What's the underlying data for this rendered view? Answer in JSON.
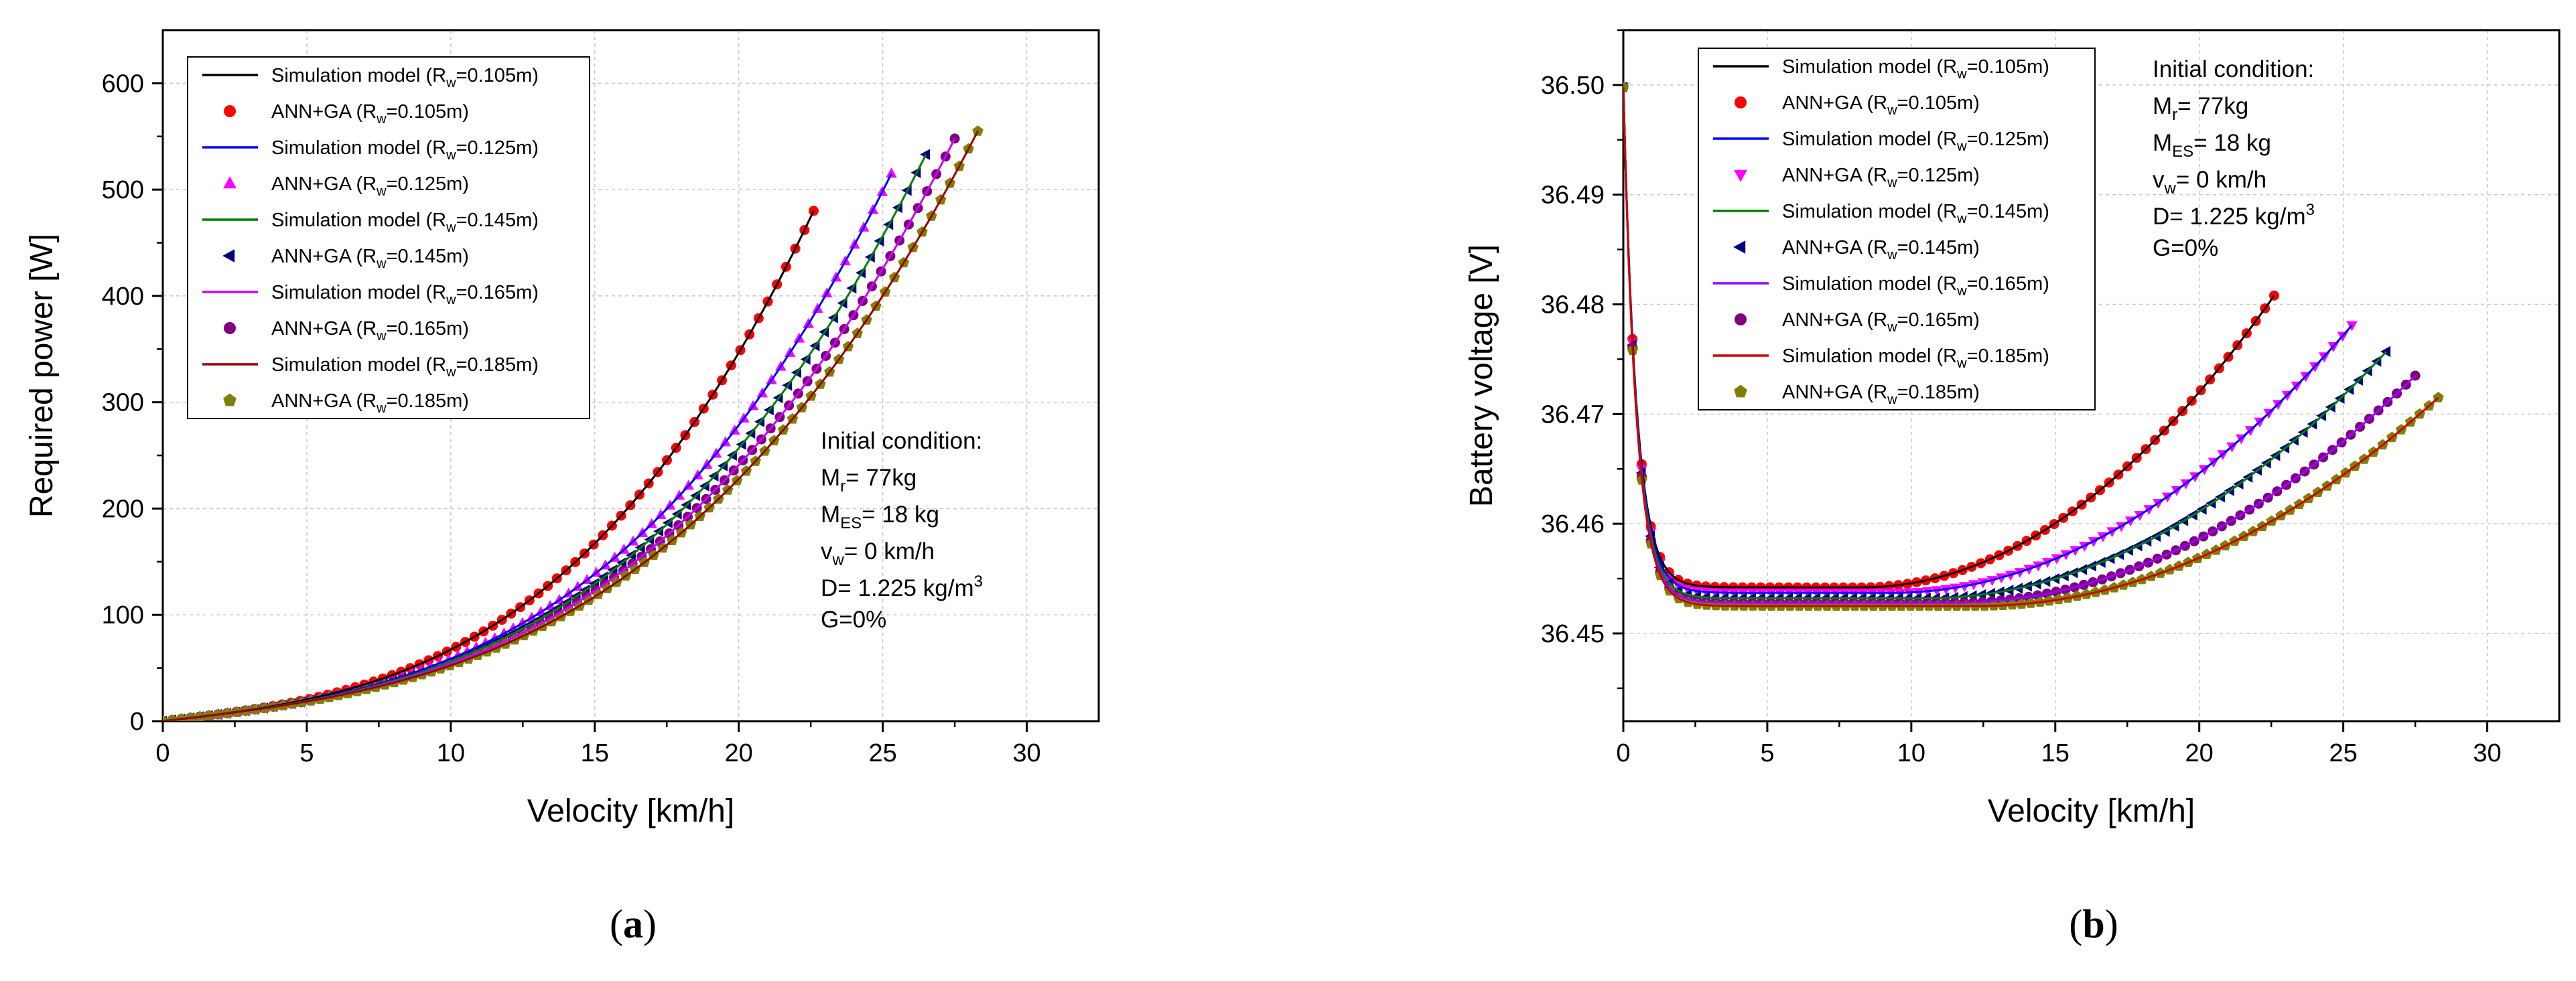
{
  "figure": {
    "caption_a_open": "(",
    "caption_a_letter": "a",
    "caption_a_close": ")",
    "caption_b_open": "(",
    "caption_b_letter": "b",
    "caption_b_close": ")"
  },
  "chart_data": [
    {
      "id": "a",
      "type": "line",
      "title": "",
      "xlabel": "Velocity [km/h]",
      "ylabel": "Required power [W]",
      "xlim": [
        0,
        32.5
      ],
      "ylim": [
        0,
        650
      ],
      "xticks": [
        0,
        5,
        10,
        15,
        20,
        25,
        30
      ],
      "yticks": [
        0,
        100,
        200,
        300,
        400,
        500,
        600
      ],
      "grid": true,
      "legend_position": "top-left",
      "curve_model": "power",
      "series": [
        {
          "name": "Simulation model (Rw=0.105m)",
          "label_main": "Simulation model (R",
          "label_sub": "w",
          "label_end": "=0.105m)",
          "kind": "line",
          "color": "#000000",
          "vmax": 22.6,
          "p_end": 480
        },
        {
          "name": "ANN+GA (Rw=0.105m)",
          "label_main": "ANN+GA (R",
          "label_sub": "w",
          "label_end": "=0.105m)",
          "kind": "marker",
          "marker": "circle",
          "color": "#ff0000",
          "vmax": 22.6,
          "p_end": 480
        },
        {
          "name": "Simulation model (Rw=0.125m)",
          "label_main": "Simulation model (R",
          "label_sub": "w",
          "label_end": "=0.125m)",
          "kind": "line",
          "color": "#0000ff",
          "vmax": 25.3,
          "p_end": 515
        },
        {
          "name": "ANN+GA (Rw=0.125m)",
          "label_main": "ANN+GA (R",
          "label_sub": "w",
          "label_end": "=0.125m)",
          "kind": "marker",
          "marker": "triangle-up",
          "color": "#ff00ff",
          "vmax": 25.3,
          "p_end": 515
        },
        {
          "name": "Simulation model (Rw=0.145m)",
          "label_main": "Simulation model (R",
          "label_sub": "w",
          "label_end": "=0.145m)",
          "kind": "line",
          "color": "#008000",
          "vmax": 26.5,
          "p_end": 533
        },
        {
          "name": "ANN+GA (Rw=0.145m)",
          "label_main": "ANN+GA (R",
          "label_sub": "w",
          "label_end": "=0.145m)",
          "kind": "marker",
          "marker": "triangle-left",
          "color": "#000080",
          "vmax": 26.5,
          "p_end": 533
        },
        {
          "name": "Simulation model (Rw=0.165m)",
          "label_main": "Simulation model (R",
          "label_sub": "w",
          "label_end": "=0.165m)",
          "kind": "line",
          "color": "#cc00ff",
          "vmax": 27.5,
          "p_end": 548
        },
        {
          "name": "ANN+GA (Rw=0.165m)",
          "label_main": "ANN+GA (R",
          "label_sub": "w",
          "label_end": "=0.165m)",
          "kind": "marker",
          "marker": "circle",
          "color": "#800080",
          "vmax": 27.5,
          "p_end": 548
        },
        {
          "name": "Simulation model (Rw=0.185m)",
          "label_main": "Simulation model (R",
          "label_sub": "w",
          "label_end": "=0.185m)",
          "kind": "line",
          "color": "#990000",
          "vmax": 28.3,
          "p_end": 555
        },
        {
          "name": "ANN+GA (Rw=0.185m)",
          "label_main": "ANN+GA (R",
          "label_sub": "w",
          "label_end": "=0.185m)",
          "kind": "marker",
          "marker": "pentagon",
          "color": "#808000",
          "vmax": 28.3,
          "p_end": 555
        }
      ],
      "annotation": {
        "position": "center-right",
        "line1": "Initial condition:",
        "mr_main": "M",
        "mr_sub": "r",
        "mr_end": "= 77kg",
        "mes_main": "M",
        "mes_sub": "ES",
        "mes_end": "= 18 kg",
        "vw_main": "v",
        "vw_sub": "w",
        "vw_end": "= 0 km/h",
        "d_main": "D= 1.225 kg/m",
        "d_sup": "3",
        "g_line": "G=0%"
      }
    },
    {
      "id": "b",
      "type": "line",
      "title": "",
      "xlabel": "Velocity [km/h]",
      "ylabel": "Battery voltage [V]",
      "xlim": [
        0,
        32.5
      ],
      "ylim": [
        36.442,
        36.505
      ],
      "xticks": [
        0,
        5,
        10,
        15,
        20,
        25,
        30
      ],
      "yticks": [
        36.45,
        36.46,
        36.47,
        36.48,
        36.49,
        36.5
      ],
      "ytick_labels": [
        "36.45",
        "36.46",
        "36.47",
        "36.48",
        "36.49",
        "36.50"
      ],
      "grid": true,
      "legend_position": "top-center",
      "curve_model": "voltage",
      "series": [
        {
          "name": "Simulation model (Rw=0.105m)",
          "label_main": "Simulation model (R",
          "label_sub": "w",
          "label_end": "=0.105m)",
          "kind": "line",
          "color": "#000000",
          "vmin_at": 8.3,
          "v_low": 36.4542,
          "vmax": 22.6,
          "v_end": 36.4808
        },
        {
          "name": "ANN+GA (Rw=0.105m)",
          "label_main": "ANN+GA (R",
          "label_sub": "w",
          "label_end": "=0.105m)",
          "kind": "marker",
          "marker": "circle",
          "color": "#ff0000",
          "vmin_at": 8.3,
          "v_low": 36.4542,
          "vmax": 22.6,
          "v_end": 36.4808
        },
        {
          "name": "Simulation model (Rw=0.125m)",
          "label_main": "Simulation model (R",
          "label_sub": "w",
          "label_end": "=0.125m)",
          "kind": "line",
          "color": "#0000ff",
          "vmin_at": 9.3,
          "v_low": 36.4537,
          "vmax": 25.3,
          "v_end": 36.4781
        },
        {
          "name": "ANN+GA (Rw=0.125m)",
          "label_main": "ANN+GA (R",
          "label_sub": "w",
          "label_end": "=0.125m)",
          "kind": "marker",
          "marker": "triangle-down",
          "color": "#ff00ff",
          "vmin_at": 9.3,
          "v_low": 36.4537,
          "vmax": 25.3,
          "v_end": 36.4781
        },
        {
          "name": "Simulation model (Rw=0.145m)",
          "label_main": "Simulation model (R",
          "label_sub": "w",
          "label_end": "=0.145m)",
          "kind": "line",
          "color": "#008000",
          "vmin_at": 10.5,
          "v_low": 36.4532,
          "vmax": 26.5,
          "v_end": 36.4757
        },
        {
          "name": "ANN+GA (Rw=0.145m)",
          "label_main": "ANN+GA (R",
          "label_sub": "w",
          "label_end": "=0.145m)",
          "kind": "marker",
          "marker": "triangle-left",
          "color": "#000080",
          "vmin_at": 10.5,
          "v_low": 36.4532,
          "vmax": 26.5,
          "v_end": 36.4757
        },
        {
          "name": "Simulation model (Rw=0.165m)",
          "label_main": "Simulation model (R",
          "label_sub": "w",
          "label_end": "=0.165m)",
          "kind": "line",
          "color": "#9900ff",
          "vmin_at": 11.5,
          "v_low": 36.4528,
          "vmax": 27.5,
          "v_end": 36.4735
        },
        {
          "name": "ANN+GA (Rw=0.165m)",
          "label_main": "ANN+GA (R",
          "label_sub": "w",
          "label_end": "=0.165m)",
          "kind": "marker",
          "marker": "circle",
          "color": "#800080",
          "vmin_at": 11.5,
          "v_low": 36.4528,
          "vmax": 27.5,
          "v_end": 36.4735
        },
        {
          "name": "Simulation model (Rw=0.185m)",
          "label_main": "Simulation model (R",
          "label_sub": "w",
          "label_end": "=0.185m)",
          "kind": "line",
          "color": "#cc0000",
          "vmin_at": 12.3,
          "v_low": 36.4525,
          "vmax": 28.3,
          "v_end": 36.4715
        },
        {
          "name": "ANN+GA (Rw=0.185m)",
          "label_main": "ANN+GA (R",
          "label_sub": "w",
          "label_end": "=0.185m)",
          "kind": "marker",
          "marker": "pentagon",
          "color": "#808000",
          "vmin_at": 12.3,
          "v_low": 36.4525,
          "vmax": 28.3,
          "v_end": 36.4715
        }
      ],
      "annotation": {
        "position": "top-right",
        "line1": "Initial condition:",
        "mr_main": "M",
        "mr_sub": "r",
        "mr_end": "= 77kg",
        "mes_main": "M",
        "mes_sub": "ES",
        "mes_end": "= 18 kg",
        "vw_main": "v",
        "vw_sub": "w",
        "vw_end": "= 0 km/h",
        "d_main": "D= 1.225 kg/m",
        "d_sup": "3",
        "g_line": "G=0%"
      }
    }
  ]
}
